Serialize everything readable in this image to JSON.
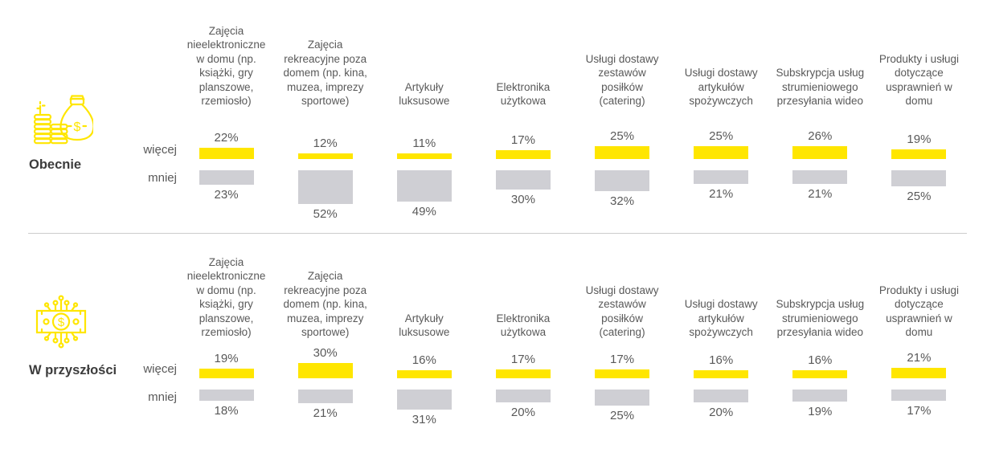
{
  "colors": {
    "more_bar": "#FFE600",
    "less_bar": "#CFCFD4",
    "divider": "#CCCCCC",
    "text": "#595959",
    "row_label_text": "#3C3C3C",
    "icon": "#FFE600"
  },
  "bar_row_labels": {
    "more": "więcej",
    "less": "mniej"
  },
  "sections": [
    {
      "label": "Obecnie",
      "icon": "money-bag-and-coins-icon"
    },
    {
      "label": "W przyszłości",
      "icon": "digital-banknote-icon"
    }
  ],
  "chart_data": {
    "type": "bar",
    "orientation": "vertical, paired (więcej above baseline, mniej below)",
    "unit": "%",
    "title": "",
    "legend_position": "left of bars (więcej / mniej row labels)",
    "axes": "none - values shown as data labels on each bar",
    "categories": [
      "Zajęcia nieelektroniczne w domu (np. książki, gry planszowe, rzemiosło)",
      "Zajęcia rekreacyjne poza domem (np. kina, muzea, imprezy sportowe)",
      "Artykuły luksusowe",
      "Elektronika użytkowa",
      "Usługi dostawy zestawów posiłków (catering)",
      "Usługi dostawy artykułów spożywczych",
      "Subskrypcja usług strumieniowego przesyłania wideo",
      "Produkty i usługi dotyczące usprawnień w domu"
    ],
    "groups": [
      {
        "name": "Obecnie",
        "series": [
          {
            "name": "więcej",
            "color": "#FFE600",
            "values": [
              22,
              12,
              11,
              17,
              25,
              25,
              26,
              19
            ]
          },
          {
            "name": "mniej",
            "color": "#CFCFD4",
            "values": [
              23,
              52,
              49,
              30,
              32,
              21,
              21,
              25
            ]
          }
        ]
      },
      {
        "name": "W przyszłości",
        "series": [
          {
            "name": "więcej",
            "color": "#FFE600",
            "values": [
              19,
              30,
              16,
              17,
              17,
              16,
              16,
              21
            ]
          },
          {
            "name": "mniej",
            "color": "#CFCFD4",
            "values": [
              18,
              21,
              31,
              20,
              25,
              20,
              19,
              17
            ]
          }
        ]
      }
    ]
  }
}
